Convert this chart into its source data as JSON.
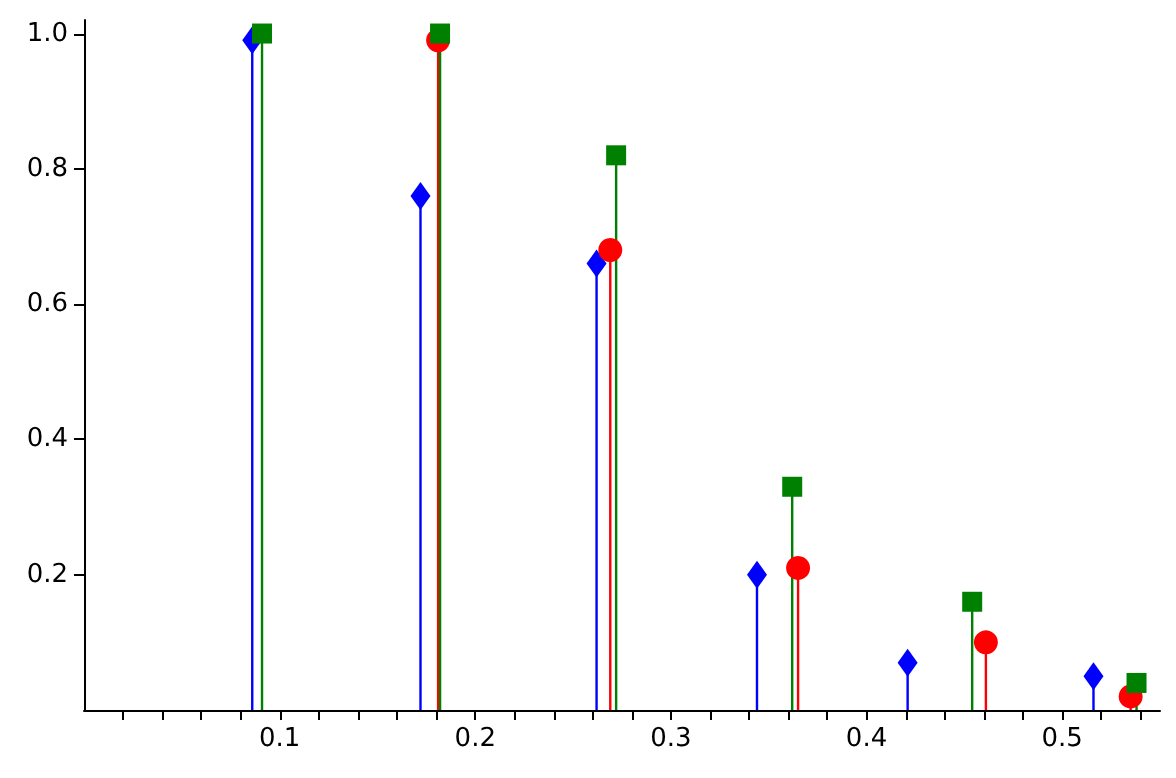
{
  "chart_data": {
    "type": "lollipop",
    "xlim": [
      0,
      0.55
    ],
    "ylim": [
      0,
      1.02
    ],
    "xticks": [
      {
        "value": 0.02,
        "label": null
      },
      {
        "value": 0.04,
        "label": null
      },
      {
        "value": 0.06,
        "label": null
      },
      {
        "value": 0.08,
        "label": null
      },
      0.1,
      {
        "value": 0.12,
        "label": null
      },
      {
        "value": 0.14,
        "label": null
      },
      {
        "value": 0.16,
        "label": null
      },
      {
        "value": 0.18,
        "label": null
      },
      0.2,
      {
        "value": 0.22,
        "label": null
      },
      {
        "value": 0.24,
        "label": null
      },
      {
        "value": 0.26,
        "label": null
      },
      {
        "value": 0.28,
        "label": null
      },
      0.3,
      {
        "value": 0.32,
        "label": null
      },
      {
        "value": 0.34,
        "label": null
      },
      {
        "value": 0.36,
        "label": null
      },
      {
        "value": 0.38,
        "label": null
      },
      0.4,
      {
        "value": 0.42,
        "label": null
      },
      {
        "value": 0.44,
        "label": null
      },
      {
        "value": 0.46,
        "label": null
      },
      {
        "value": 0.48,
        "label": null
      },
      0.5,
      {
        "value": 0.52,
        "label": null
      },
      {
        "value": 0.54,
        "label": null
      }
    ],
    "yticks": [
      0.2,
      0.4,
      0.6,
      0.8,
      {
        "value": 1,
        "label": "1.0"
      }
    ],
    "grid": false,
    "series": [
      {
        "color": "#0000ff",
        "marker": "diamond",
        "x": [
          0.086,
          0.172,
          0.262,
          0.344,
          0.421,
          0.516
        ],
        "values": [
          0.99,
          0.76,
          0.66,
          0.2,
          0.07,
          0.05
        ]
      },
      {
        "color": "#ff0000",
        "marker": "circle",
        "x": [
          0.181,
          0.269,
          0.365,
          0.461,
          0.535
        ],
        "values": [
          0.99,
          0.68,
          0.21,
          0.1,
          0.02
        ]
      },
      {
        "color": "#008000",
        "marker": "square",
        "x": [
          0.091,
          0.182,
          0.272,
          0.362,
          0.454,
          0.538
        ],
        "values": [
          1.0,
          1.0,
          0.82,
          0.33,
          0.16,
          0.04
        ]
      }
    ]
  }
}
